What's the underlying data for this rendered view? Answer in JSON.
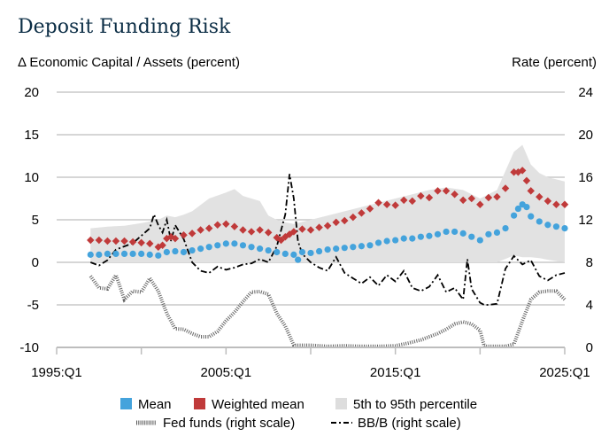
{
  "title": "Deposit Funding Risk",
  "chart_data": {
    "type": "line",
    "title": "Deposit Funding Risk",
    "ylabel_left": "Δ Economic Capital / Assets (percent)",
    "ylabel_right": "Rate (percent)",
    "xlabel": "",
    "x_ticks": [
      "1995:Q1",
      "2005:Q1",
      "2015:Q1",
      "2025:Q1"
    ],
    "x_range": [
      1995.0,
      2025.0
    ],
    "y_left_ticks": [
      20,
      15,
      10,
      5,
      0,
      -5,
      -10
    ],
    "y_left_range": [
      -10,
      20
    ],
    "y_right_ticks": [
      24,
      20,
      16,
      12,
      8,
      4,
      0
    ],
    "y_right_range": [
      0,
      24
    ],
    "grid": true,
    "legend_position": "bottom",
    "legend": [
      {
        "label": "Mean",
        "color": "#44a3dc",
        "kind": "square"
      },
      {
        "label": "Weighted mean",
        "color": "#c03a3a",
        "kind": "square"
      },
      {
        "label": "5th to 95th percentile",
        "color": "#dddddd",
        "kind": "square"
      },
      {
        "label": "Fed funds (right scale)",
        "color": "#555555",
        "kind": "dotted"
      },
      {
        "label": "BB/B (right scale)",
        "color": "#000000",
        "kind": "dashdot"
      }
    ],
    "series": [
      {
        "name": "5th to 95th percentile",
        "axis": "left",
        "type": "band",
        "x": [
          1997.0,
          1998.0,
          1999.0,
          2000.0,
          2001.0,
          2001.5,
          2002.0,
          2002.5,
          2003.0,
          2004.0,
          2005.0,
          2005.5,
          2006.0,
          2007.0,
          2007.5,
          2008.0,
          2008.5,
          2009.0,
          2010.0,
          2011.0,
          2012.0,
          2013.0,
          2014.0,
          2015.0,
          2016.0,
          2017.0,
          2018.0,
          2019.0,
          2020.0,
          2021.0,
          2022.0,
          2022.5,
          2023.0,
          2023.5,
          2024.0,
          2025.0
        ],
        "upper": [
          4.0,
          4.2,
          4.3,
          4.6,
          5.0,
          5.5,
          5.3,
          5.6,
          6.0,
          7.5,
          8.2,
          8.6,
          7.8,
          7.2,
          5.5,
          5.0,
          4.7,
          4.5,
          5.0,
          5.5,
          6.0,
          6.5,
          7.0,
          7.5,
          8.0,
          8.5,
          8.8,
          8.5,
          7.5,
          8.5,
          13.0,
          13.8,
          11.5,
          10.5,
          10.0,
          9.5
        ],
        "lower": [
          0.0,
          0.0,
          0.0,
          0.0,
          0.0,
          0.0,
          0.0,
          0.0,
          0.0,
          0.0,
          0.0,
          0.0,
          0.0,
          0.0,
          0.0,
          0.0,
          0.0,
          0.0,
          0.0,
          0.0,
          0.0,
          0.0,
          0.0,
          0.0,
          0.0,
          0.0,
          0.0,
          0.0,
          0.0,
          0.0,
          0.8,
          0.6,
          0.6,
          0.5,
          0.3,
          0.0
        ]
      },
      {
        "name": "Weighted mean",
        "axis": "left",
        "type": "markers",
        "x": [
          1997.0,
          1997.5,
          1998.0,
          1998.5,
          1999.0,
          1999.5,
          2000.0,
          2000.5,
          2001.0,
          2001.25,
          2001.5,
          2001.75,
          2002.0,
          2002.5,
          2003.0,
          2003.5,
          2004.0,
          2004.5,
          2005.0,
          2005.5,
          2006.0,
          2006.5,
          2007.0,
          2007.5,
          2008.0,
          2008.25,
          2008.5,
          2008.75,
          2009.0,
          2009.5,
          2010.0,
          2010.5,
          2011.0,
          2011.5,
          2012.0,
          2012.5,
          2013.0,
          2013.5,
          2014.0,
          2014.5,
          2015.0,
          2015.5,
          2016.0,
          2016.5,
          2017.0,
          2017.5,
          2018.0,
          2018.5,
          2019.0,
          2019.5,
          2020.0,
          2020.5,
          2021.0,
          2021.5,
          2022.0,
          2022.25,
          2022.5,
          2022.75,
          2023.0,
          2023.5,
          2024.0,
          2024.5,
          2025.0
        ],
        "values": [
          2.6,
          2.6,
          2.5,
          2.5,
          2.5,
          2.4,
          2.3,
          2.2,
          1.8,
          2.0,
          2.8,
          3.0,
          2.8,
          3.2,
          3.4,
          3.8,
          4.0,
          4.4,
          4.5,
          4.2,
          3.8,
          3.6,
          3.8,
          3.5,
          2.9,
          2.6,
          3.0,
          3.3,
          3.6,
          3.9,
          3.8,
          4.1,
          4.3,
          4.7,
          4.9,
          5.3,
          5.8,
          6.3,
          7.0,
          6.8,
          6.7,
          7.3,
          7.2,
          7.8,
          7.6,
          8.4,
          8.4,
          8.0,
          7.3,
          7.5,
          6.8,
          7.6,
          7.7,
          8.7,
          10.6,
          10.6,
          10.8,
          9.6,
          8.4,
          7.7,
          7.2,
          6.8,
          6.8
        ]
      },
      {
        "name": "Mean",
        "axis": "left",
        "type": "markers",
        "x": [
          1997.0,
          1997.5,
          1998.0,
          1998.5,
          1999.0,
          1999.5,
          2000.0,
          2000.5,
          2001.0,
          2001.5,
          2002.0,
          2002.5,
          2003.0,
          2003.5,
          2004.0,
          2004.5,
          2005.0,
          2005.5,
          2006.0,
          2006.5,
          2007.0,
          2007.5,
          2008.0,
          2008.5,
          2009.0,
          2009.25,
          2009.5,
          2010.0,
          2010.5,
          2011.0,
          2011.5,
          2012.0,
          2012.5,
          2013.0,
          2013.5,
          2014.0,
          2014.5,
          2015.0,
          2015.5,
          2016.0,
          2016.5,
          2017.0,
          2017.5,
          2018.0,
          2018.5,
          2019.0,
          2019.5,
          2020.0,
          2020.5,
          2021.0,
          2021.5,
          2022.0,
          2022.25,
          2022.5,
          2022.75,
          2023.0,
          2023.5,
          2024.0,
          2024.5,
          2025.0
        ],
        "values": [
          0.9,
          0.9,
          1.0,
          1.0,
          1.0,
          1.0,
          1.0,
          0.9,
          0.8,
          1.2,
          1.3,
          1.2,
          1.4,
          1.6,
          1.8,
          2.0,
          2.2,
          2.2,
          2.0,
          1.8,
          1.6,
          1.4,
          1.2,
          1.0,
          0.9,
          0.3,
          1.2,
          1.1,
          1.3,
          1.5,
          1.6,
          1.7,
          1.8,
          1.9,
          2.0,
          2.3,
          2.5,
          2.6,
          2.8,
          2.8,
          3.0,
          3.1,
          3.3,
          3.6,
          3.6,
          3.4,
          3.0,
          2.6,
          3.3,
          3.5,
          4.0,
          5.5,
          6.3,
          6.8,
          6.5,
          5.4,
          4.8,
          4.4,
          4.2,
          4.0
        ]
      },
      {
        "name": "Fed funds (right scale)",
        "axis": "right",
        "type": "dotted",
        "x": [
          1997.0,
          1997.5,
          1998.0,
          1998.5,
          1999.0,
          1999.5,
          2000.0,
          2000.5,
          2001.0,
          2001.5,
          2002.0,
          2002.5,
          2003.0,
          2003.5,
          2004.0,
          2004.5,
          2005.0,
          2005.5,
          2006.0,
          2006.5,
          2007.0,
          2007.5,
          2008.0,
          2008.5,
          2009.0,
          2010.0,
          2011.0,
          2012.0,
          2013.0,
          2014.0,
          2015.0,
          2015.75,
          2016.5,
          2017.0,
          2017.5,
          2018.0,
          2018.5,
          2019.0,
          2019.5,
          2020.0,
          2020.25,
          2021.0,
          2021.5,
          2022.0,
          2022.5,
          2023.0,
          2023.5,
          2024.0,
          2024.5,
          2025.0
        ],
        "values": [
          6.7,
          5.6,
          5.5,
          6.8,
          4.5,
          5.3,
          5.2,
          6.5,
          5.3,
          3.2,
          1.75,
          1.7,
          1.3,
          1.0,
          1.0,
          1.5,
          2.5,
          3.3,
          4.3,
          5.2,
          5.25,
          5.0,
          3.2,
          2.0,
          0.2,
          0.2,
          0.1,
          0.15,
          0.1,
          0.1,
          0.15,
          0.4,
          0.7,
          1.0,
          1.3,
          1.7,
          2.2,
          2.4,
          2.2,
          1.6,
          0.1,
          0.1,
          0.1,
          0.3,
          2.5,
          4.5,
          5.2,
          5.3,
          5.3,
          4.5
        ]
      },
      {
        "name": "BB/B (right scale)",
        "axis": "right",
        "type": "dashdot",
        "x": [
          1997.0,
          1997.5,
          1998.0,
          1998.5,
          1999.0,
          1999.5,
          2000.0,
          2000.5,
          2000.75,
          2001.0,
          2001.25,
          2001.5,
          2001.75,
          2002.0,
          2002.5,
          2003.0,
          2003.5,
          2004.0,
          2004.5,
          2005.0,
          2005.5,
          2006.0,
          2006.5,
          2007.0,
          2007.5,
          2008.0,
          2008.5,
          2008.75,
          2009.0,
          2009.25,
          2009.5,
          2010.0,
          2010.5,
          2011.0,
          2011.5,
          2012.0,
          2012.5,
          2013.0,
          2013.5,
          2014.0,
          2014.5,
          2015.0,
          2015.5,
          2016.0,
          2016.5,
          2017.0,
          2017.5,
          2018.0,
          2018.5,
          2019.0,
          2019.25,
          2019.5,
          2020.0,
          2020.25,
          2020.5,
          2021.0,
          2021.5,
          2022.0,
          2022.5,
          2023.0,
          2023.5,
          2024.0,
          2024.5,
          2025.0
        ],
        "values": [
          8.0,
          7.7,
          8.2,
          9.2,
          9.5,
          9.8,
          10.5,
          11.2,
          12.5,
          11.5,
          10.8,
          12.0,
          10.0,
          11.5,
          10.2,
          8.0,
          7.2,
          7.0,
          7.6,
          7.3,
          7.5,
          7.8,
          7.9,
          8.3,
          8.0,
          9.5,
          12.5,
          16.3,
          14.0,
          10.0,
          8.8,
          8.0,
          7.5,
          7.2,
          8.5,
          7.0,
          6.5,
          6.0,
          6.6,
          5.8,
          6.8,
          6.2,
          7.2,
          5.6,
          5.3,
          5.7,
          6.8,
          5.2,
          5.6,
          4.5,
          8.3,
          5.5,
          4.2,
          4.0,
          4.0,
          4.1,
          7.4,
          8.6,
          7.8,
          8.2,
          6.7,
          6.3,
          6.8,
          7.0
        ]
      }
    ]
  }
}
